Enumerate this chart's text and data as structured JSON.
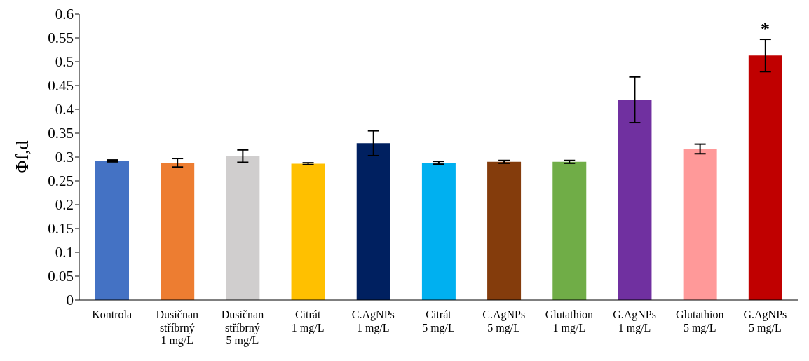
{
  "chart_data": {
    "type": "bar",
    "ylabel": "Φf,d",
    "categories": [
      "Kontrola",
      "Dusičnan\nstříbrný\n1 mg/L",
      "Dusičnan\nstříbrný\n5 mg/L",
      "Citrát\n1 mg/L",
      "C.AgNPs\n1 mg/L",
      "Citrát\n5 mg/L",
      "C.AgNPs\n5 mg/L",
      "Glutathion\n1 mg/L",
      "G.AgNPs\n1 mg/L",
      "Glutathion\n5 mg/L",
      "G.AgNPs\n5 mg/L"
    ],
    "values": [
      0.292,
      0.288,
      0.302,
      0.286,
      0.329,
      0.288,
      0.29,
      0.29,
      0.42,
      0.317,
      0.513
    ],
    "errors": [
      0.002,
      0.009,
      0.013,
      0.002,
      0.026,
      0.003,
      0.003,
      0.003,
      0.048,
      0.01,
      0.034
    ],
    "colors": [
      "#4472c4",
      "#ed7d31",
      "#d0cece",
      "#ffc000",
      "#002060",
      "#00b0f0",
      "#843c0c",
      "#70ad47",
      "#7030a0",
      "#ff9999",
      "#c00000"
    ],
    "ylim": [
      0,
      0.6
    ],
    "yticks": [
      0,
      0.05,
      0.1,
      0.15,
      0.2,
      0.25,
      0.3,
      0.35,
      0.4,
      0.45,
      0.5,
      0.55,
      0.6
    ],
    "grid": false,
    "legend": false,
    "annotations": [
      {
        "text": "*",
        "x": "G.AgNPs\n5 mg/L",
        "y": 0.513
      }
    ]
  }
}
